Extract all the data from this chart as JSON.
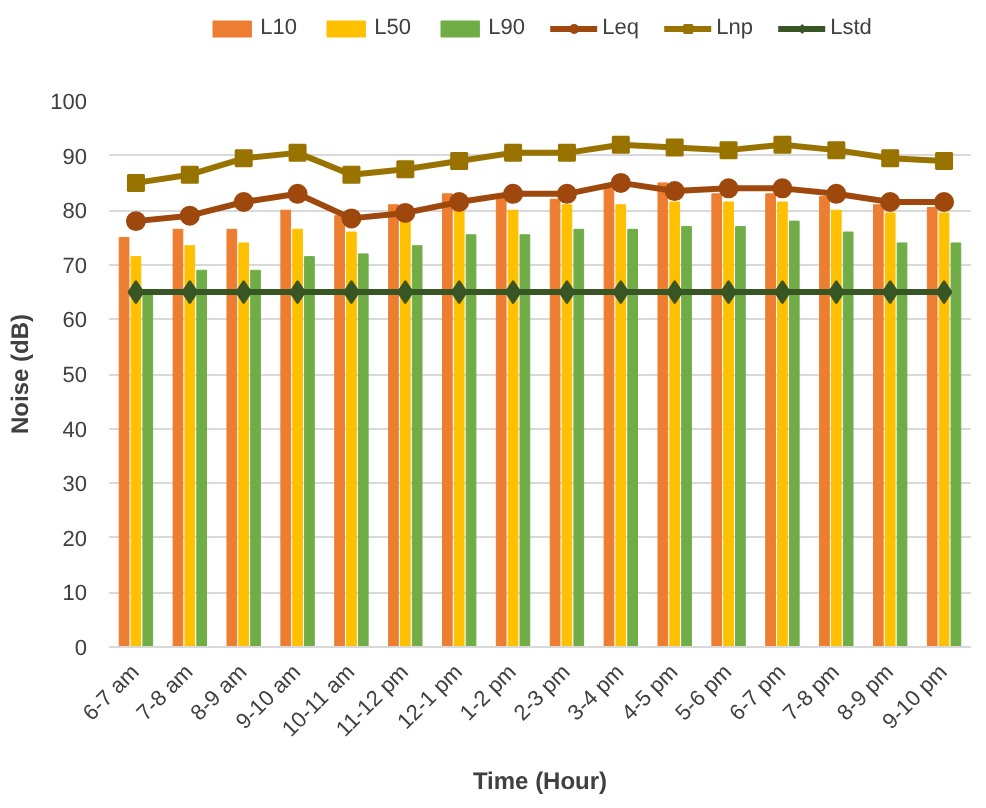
{
  "chart_data": {
    "type": "bar",
    "xlabel": "Time (Hour)",
    "ylabel": "Noise (dB)",
    "categories": [
      "6-7 am",
      "7-8 am",
      "8-9 am",
      "9-10 am",
      "10-11 am",
      "11-12 pm",
      "12-1 pm",
      "1-2 pm",
      "2-3 pm",
      "3-4 pm",
      "4-5 pm",
      "5-6 pm",
      "6-7 pm",
      "7-8 pm",
      "8-9 pm",
      "9-10 pm"
    ],
    "series": [
      {
        "name": "L10",
        "color": "#ed7d31",
        "values": [
          75,
          76.5,
          76.5,
          80,
          79,
          81,
          83,
          82.5,
          82,
          84,
          85,
          83,
          83,
          82.5,
          81,
          80.5
        ]
      },
      {
        "name": "L50",
        "color": "#ffc000",
        "values": [
          71.5,
          73.5,
          74,
          76.5,
          76,
          78,
          80,
          80,
          81,
          81,
          81.5,
          81.5,
          81.5,
          80,
          79.5,
          79.5
        ]
      },
      {
        "name": "L90",
        "color": "#70ad47",
        "values": [
          65,
          69,
          69,
          71.5,
          72,
          73.5,
          75.5,
          75.5,
          76.5,
          76.5,
          77,
          77,
          78,
          76,
          74,
          74
        ]
      },
      {
        "name": "Leq",
        "type": "line",
        "marker": "circle",
        "color": "#9e480e",
        "values": [
          78,
          79,
          81.5,
          83,
          78.5,
          79.5,
          81.5,
          83,
          83,
          85,
          83.5,
          84,
          84,
          83,
          81.5,
          81.5
        ]
      },
      {
        "name": "Lnp",
        "type": "line",
        "marker": "square",
        "color": "#997300",
        "values": [
          85,
          86.5,
          89.5,
          90.5,
          86.5,
          87.5,
          89,
          90.5,
          90.5,
          92,
          91.5,
          91,
          92,
          91,
          89.5,
          89
        ]
      },
      {
        "name": "Lstd",
        "type": "line",
        "marker": "diamond",
        "color": "#375623",
        "values": [
          65,
          65,
          65,
          65,
          65,
          65,
          65,
          65,
          65,
          65,
          65,
          65,
          65,
          65,
          65,
          65
        ]
      }
    ],
    "ylim": [
      0,
      100
    ],
    "yticks": [
      0,
      10,
      20,
      30,
      40,
      50,
      60,
      70,
      80,
      90,
      100
    ],
    "grid": "y",
    "legend": "top"
  }
}
